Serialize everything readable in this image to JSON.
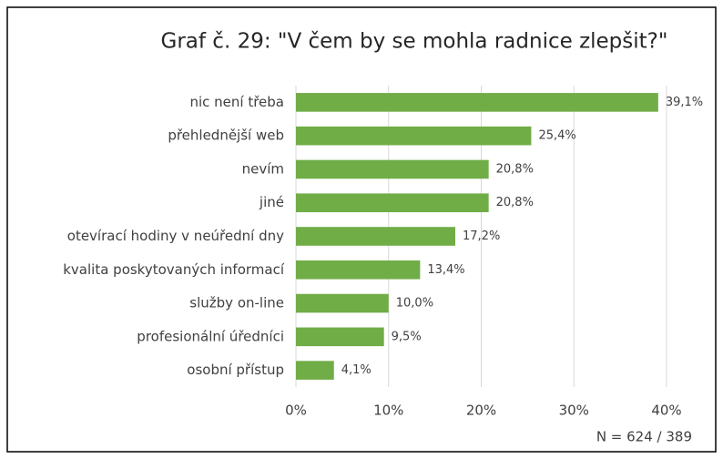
{
  "chart_data": {
    "type": "bar",
    "orientation": "horizontal",
    "title": "Graf č. 29: \"V čem by se mohla radnice zlepšit?\"",
    "categories": [
      "nic není třeba",
      "přehlednější web",
      "nevím",
      "jiné",
      "otevírací hodiny v neúřední dny",
      "kvalita poskytovaných informací",
      "služby on-line",
      "profesionální úředníci",
      "osobní přístup"
    ],
    "values": [
      39.1,
      25.4,
      20.8,
      20.8,
      17.2,
      13.4,
      10.0,
      9.5,
      4.1
    ],
    "value_labels": [
      "39,1%",
      "25,4%",
      "20,8%",
      "20,8%",
      "17,2%",
      "13,4%",
      "10,0%",
      "9,5%",
      "4,1%"
    ],
    "color": "#70ad47",
    "xlim": [
      0,
      40
    ],
    "xticks": [
      {
        "value": 0,
        "label": "0%"
      },
      {
        "value": 10,
        "label": "10%"
      },
      {
        "value": 20,
        "label": "20%"
      },
      {
        "value": 30,
        "label": "30%"
      },
      {
        "value": 40,
        "label": "40%"
      }
    ],
    "grid": true,
    "annotation": "N = 624 / 389"
  }
}
